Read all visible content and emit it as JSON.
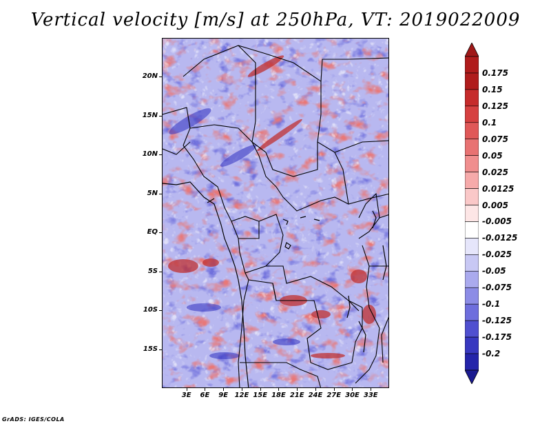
{
  "title": "Vertical velocity [m/s] at 250hPa, VT: 2019022009",
  "credit": "GrADS: IGES/COLA",
  "map": {
    "variable": "Vertical velocity",
    "units": "m/s",
    "level": "250hPa",
    "valid_time": "2019022009",
    "lat_range": [
      -20,
      25
    ],
    "lon_range": [
      -1,
      36
    ],
    "lat_ticks": [
      {
        "label": "20N",
        "value": 20
      },
      {
        "label": "15N",
        "value": 15
      },
      {
        "label": "10N",
        "value": 10
      },
      {
        "label": "5N",
        "value": 5
      },
      {
        "label": "EQ",
        "value": 0
      },
      {
        "label": "5S",
        "value": -5
      },
      {
        "label": "10S",
        "value": -10
      },
      {
        "label": "15S",
        "value": -15
      }
    ],
    "lon_ticks": [
      {
        "label": "3E",
        "value": 3
      },
      {
        "label": "6E",
        "value": 6
      },
      {
        "label": "9E",
        "value": 9
      },
      {
        "label": "12E",
        "value": 12
      },
      {
        "label": "15E",
        "value": 15
      },
      {
        "label": "18E",
        "value": 18
      },
      {
        "label": "21E",
        "value": 21
      },
      {
        "label": "24E",
        "value": 24
      },
      {
        "label": "27E",
        "value": 27
      },
      {
        "label": "30E",
        "value": 30
      },
      {
        "label": "33E",
        "value": 33
      }
    ]
  },
  "colorbar": {
    "levels": [
      {
        "label": "0.175",
        "color": "#b01c1c"
      },
      {
        "label": "0.15",
        "color": "#c62b2b"
      },
      {
        "label": "0.125",
        "color": "#d64040"
      },
      {
        "label": "0.1",
        "color": "#e05858"
      },
      {
        "label": "0.075",
        "color": "#e87272"
      },
      {
        "label": "0.05",
        "color": "#f08e8e"
      },
      {
        "label": "0.025",
        "color": "#f6aaaa"
      },
      {
        "label": "0.0125",
        "color": "#fac8c8"
      },
      {
        "label": "0.005",
        "color": "#fde6e6"
      },
      {
        "label": "-0.005",
        "color": "#ffffff"
      },
      {
        "label": "-0.0125",
        "color": "#e6e6fb"
      },
      {
        "label": "-0.025",
        "color": "#c8c8f4"
      },
      {
        "label": "-0.05",
        "color": "#aaaaee"
      },
      {
        "label": "-0.075",
        "color": "#8c8ce6"
      },
      {
        "label": "-0.1",
        "color": "#6e6edd"
      },
      {
        "label": "-0.125",
        "color": "#5050d0"
      },
      {
        "label": "-0.175",
        "color": "#3838c0"
      },
      {
        "label": "-0.2",
        "color": "#2424aa"
      }
    ],
    "top_color": "#a01818",
    "bottom_color": "#1a1a90",
    "neutral_color": "#ffffff"
  }
}
